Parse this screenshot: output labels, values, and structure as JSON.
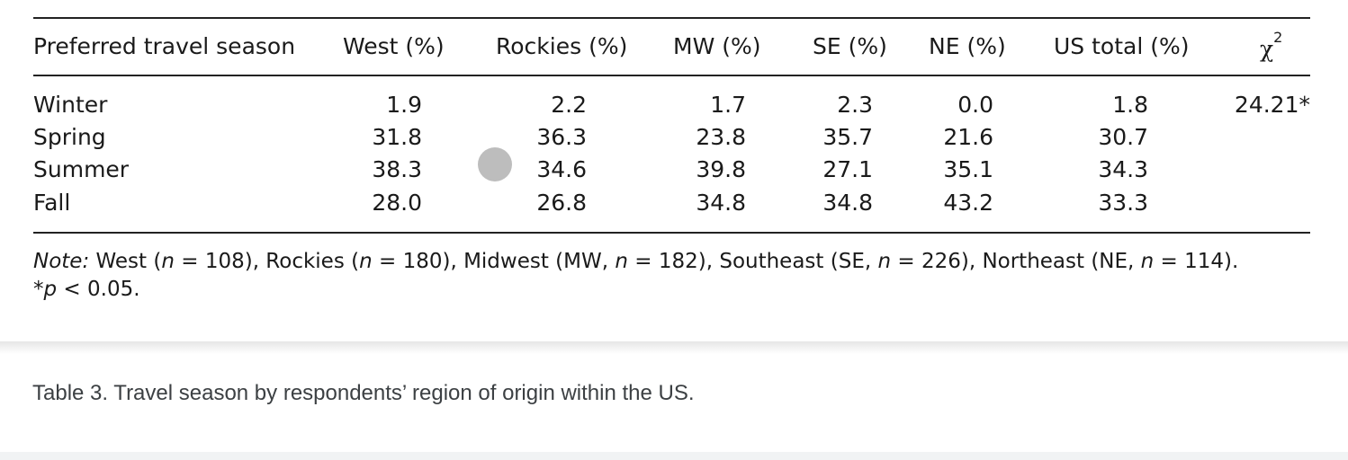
{
  "table": {
    "columns": [
      "Preferred travel season",
      "West (%)",
      "Rockies (%)",
      "MW (%)",
      "SE (%)",
      "NE (%)",
      "US total (%)",
      {
        "symbol": "χ",
        "superscript": "2"
      }
    ],
    "rows": [
      [
        "Winter",
        "1.9",
        "2.2",
        "1.7",
        "2.3",
        "0.0",
        "1.8",
        "24.21*"
      ],
      [
        "Spring",
        "31.8",
        "36.3",
        "23.8",
        "35.7",
        "21.6",
        "30.7"
      ],
      [
        "Summer",
        "38.3",
        "34.6",
        "39.8",
        "27.1",
        "35.1",
        "34.3"
      ],
      [
        "Fall",
        "28.0",
        "26.8",
        "34.8",
        "34.8",
        "43.2",
        "33.3"
      ]
    ],
    "note": [
      {
        "text": "Note:",
        "italic": true
      },
      {
        "text": " West (",
        "italic": false
      },
      {
        "text": "n",
        "italic": true
      },
      {
        "text": " = 108), Rockies (",
        "italic": false
      },
      {
        "text": "n",
        "italic": true
      },
      {
        "text": " = 180), Midwest (MW, ",
        "italic": false
      },
      {
        "text": "n",
        "italic": true
      },
      {
        "text": " = 182), Southeast (SE, ",
        "italic": false
      },
      {
        "text": "n",
        "italic": true
      },
      {
        "text": " = 226), Northeast (NE, ",
        "italic": false
      },
      {
        "text": "n",
        "italic": true
      },
      {
        "text": " = 114).",
        "italic": false
      }
    ],
    "footnote": [
      {
        "text": "*",
        "italic": false
      },
      {
        "text": "p",
        "italic": true
      },
      {
        "text": " < 0.05.",
        "italic": false
      }
    ]
  },
  "caption": "Table 3. Travel season by respondents’ region of origin within the US."
}
